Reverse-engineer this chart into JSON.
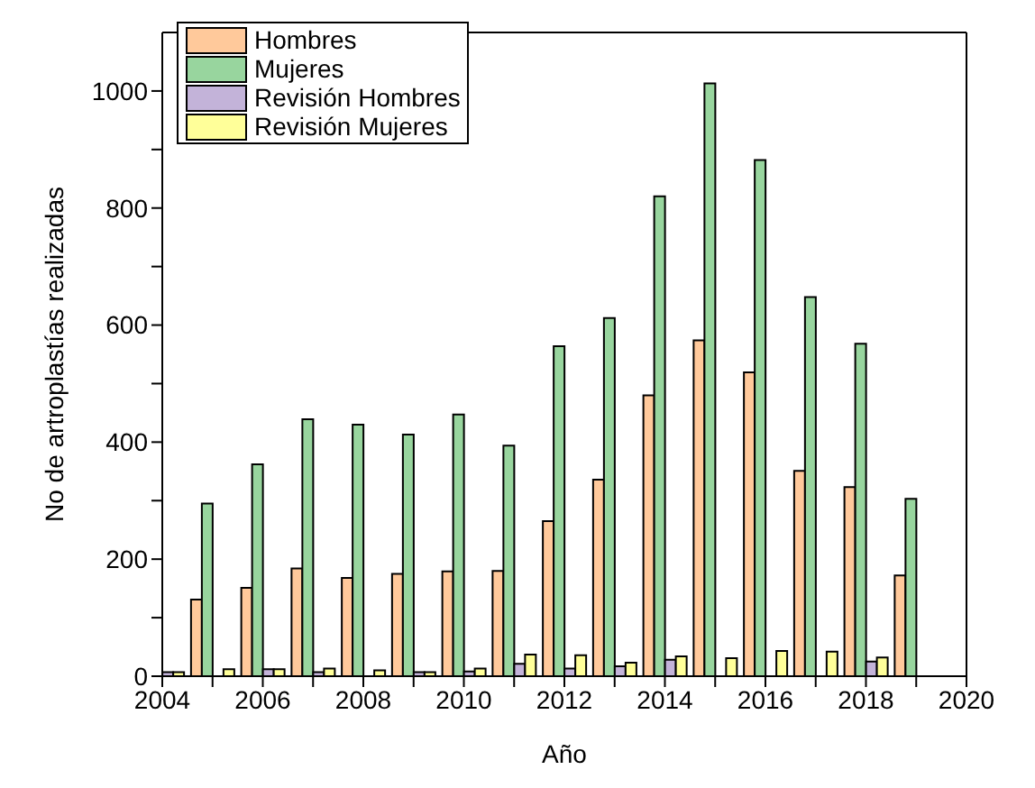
{
  "chart_data": {
    "type": "bar",
    "xlabel": "Año",
    "ylabel": "No de artroplastías realizadas",
    "x": [
      2004,
      2005,
      2006,
      2007,
      2008,
      2009,
      2010,
      2011,
      2012,
      2013,
      2014,
      2015,
      2016,
      2017,
      2018,
      2019
    ],
    "series": [
      {
        "name": "Hombres",
        "color": "#ffc99b",
        "values": [
          null,
          131,
          151,
          184,
          168,
          175,
          179,
          180,
          265,
          336,
          480,
          574,
          519,
          351,
          323,
          172
        ]
      },
      {
        "name": "Mujeres",
        "color": "#98d59e",
        "values": [
          null,
          295,
          362,
          439,
          430,
          413,
          447,
          394,
          564,
          612,
          820,
          1013,
          882,
          648,
          568,
          303
        ]
      },
      {
        "name": "Revisión Hombres",
        "color": "#c3b3d9",
        "values": [
          7,
          null,
          12,
          7,
          null,
          7,
          8,
          21,
          13,
          17,
          28,
          0,
          0,
          0,
          25,
          null
        ]
      },
      {
        "name": "Revisión Mujeres",
        "color": "#ffff99",
        "values": [
          7,
          12,
          12,
          13,
          10,
          7,
          13,
          37,
          36,
          23,
          34,
          31,
          43,
          42,
          32,
          null
        ]
      }
    ],
    "xlim": [
      2004,
      2020
    ],
    "xticks": [
      2004,
      {
        "value": 2005,
        "label": null
      },
      2006,
      {
        "value": 2007,
        "label": null
      },
      2008,
      {
        "value": 2009,
        "label": null
      },
      2010,
      {
        "value": 2011,
        "label": null
      },
      2012,
      {
        "value": 2013,
        "label": null
      },
      2014,
      {
        "value": 2015,
        "label": null
      },
      2016,
      {
        "value": 2017,
        "label": null
      },
      2018,
      {
        "value": 2019,
        "label": null
      },
      2020
    ],
    "ylim": [
      0,
      1100
    ],
    "yticks": [
      0,
      {
        "value": 100,
        "label": null
      },
      200,
      {
        "value": 300,
        "label": null
      },
      400,
      {
        "value": 500,
        "label": null
      },
      600,
      {
        "value": 700,
        "label": null
      },
      800,
      {
        "value": 900,
        "label": null
      },
      1000
    ],
    "legend": "top left",
    "grid": false
  }
}
